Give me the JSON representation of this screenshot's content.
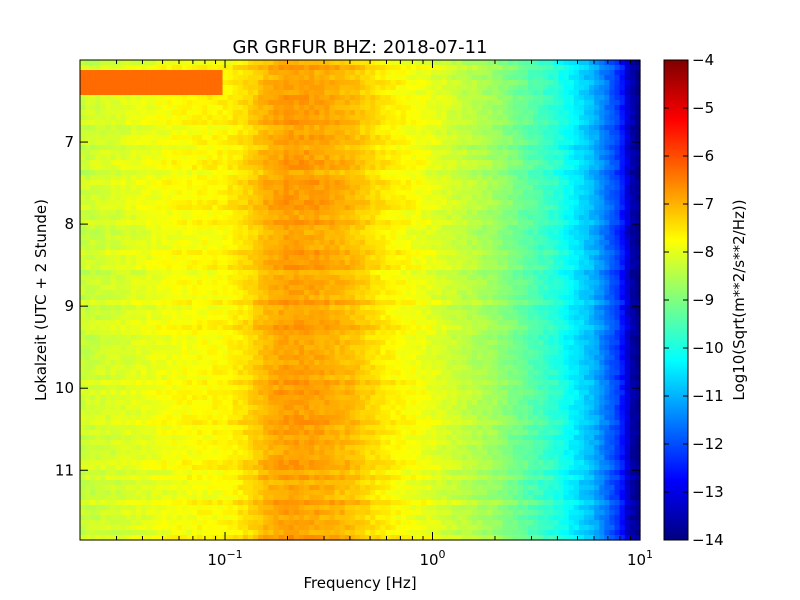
{
  "chart_data": {
    "type": "heatmap",
    "title": "GR GRFUR BHZ: 2018-07-11",
    "xlabel": "Frequency [Hz]",
    "ylabel": "Lokalzeit (UTC + 2 Stunde)",
    "colorbar_label": "Log10(Sqrt(m**2/s**2/Hz))",
    "x_scale": "log",
    "xlim": [
      0.02,
      10
    ],
    "x_ticks": [
      0.1,
      1,
      10
    ],
    "x_tick_labels": [
      {
        "base": "10",
        "exp": "−1"
      },
      {
        "base": "10",
        "exp": "0"
      },
      {
        "base": "10",
        "exp": "1"
      }
    ],
    "y_inverted": true,
    "ylim": [
      6.0,
      11.85
    ],
    "y_ticks": [
      7,
      8,
      9,
      10,
      11
    ],
    "colormap": "jet",
    "clim": [
      -14,
      -4
    ],
    "colorbar_ticks": [
      -4,
      -5,
      -6,
      -7,
      -8,
      -9,
      -10,
      -11,
      -12,
      -13,
      -14
    ],
    "frequency_profile": [
      {
        "x": 0.02,
        "v": -8.3
      },
      {
        "x": 0.04,
        "v": -8.0
      },
      {
        "x": 0.06,
        "v": -7.8
      },
      {
        "x": 0.1,
        "v": -7.7
      },
      {
        "x": 0.13,
        "v": -7.4
      },
      {
        "x": 0.16,
        "v": -7.0
      },
      {
        "x": 0.2,
        "v": -6.8
      },
      {
        "x": 0.3,
        "v": -6.9
      },
      {
        "x": 0.4,
        "v": -7.1
      },
      {
        "x": 0.6,
        "v": -7.6
      },
      {
        "x": 1.0,
        "v": -8.0
      },
      {
        "x": 2.0,
        "v": -8.7
      },
      {
        "x": 4.0,
        "v": -9.9
      },
      {
        "x": 6.0,
        "v": -11.0
      },
      {
        "x": 8.0,
        "v": -12.3
      },
      {
        "x": 9.0,
        "v": -13.5
      },
      {
        "x": 10.0,
        "v": -14.0
      }
    ],
    "features": [
      {
        "desc": "low-frequency high-power band at start",
        "x_range": [
          0.02,
          0.1
        ],
        "y_range": [
          6.15,
          6.4
        ],
        "v": -6.3
      }
    ]
  }
}
